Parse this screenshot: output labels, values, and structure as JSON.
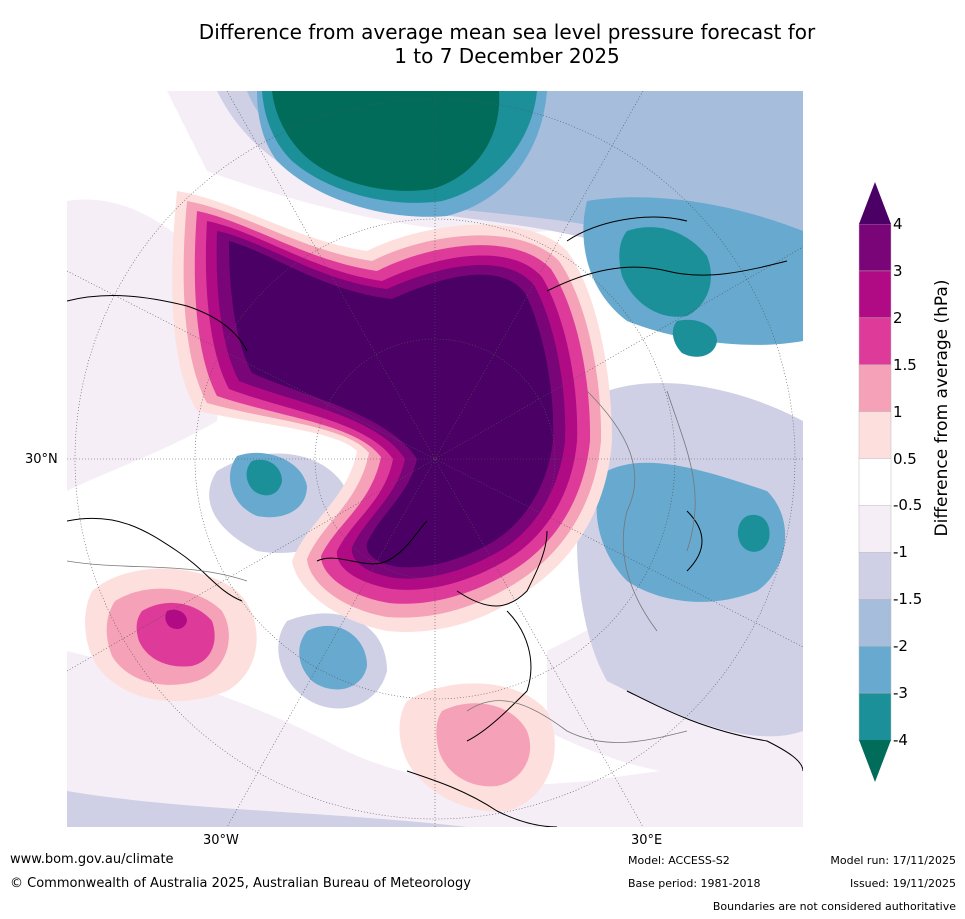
{
  "title": {
    "line1": "Difference from average mean sea level pressure forecast for",
    "line2": "1 to 7 December 2025"
  },
  "axis_labels": {
    "lat_30n": "30°N",
    "lon_30w": "30°W",
    "lon_30e": "30°E"
  },
  "legend": {
    "title": "Difference from average (hPa)",
    "levels": [
      "4",
      "3",
      "2",
      "1.5",
      "1",
      "0.5",
      "-0.5",
      "-1",
      "-1.5",
      "-2",
      "-3",
      "-4"
    ],
    "colors": [
      "#4a0064",
      "#7a0578",
      "#b00a84",
      "#dd3a9a",
      "#f5a1b8",
      "#fde0dd",
      "#ffffff",
      "#f5eef6",
      "#cfd0e6",
      "#a6bddb",
      "#67a9cf",
      "#1c9099",
      "#016c59"
    ]
  },
  "footer": {
    "url": "www.bom.gov.au/climate",
    "copyright": "© Commonwealth of Australia 2025, Australian Bureau of Meteorology",
    "model": "Model: ACCESS-S2",
    "base_period": "Base period: 1981-2018",
    "model_run": "Model run: 17/11/2025",
    "issued": "Issued: 19/11/2025",
    "disclaimer": "Boundaries are not considered authoritative"
  }
}
